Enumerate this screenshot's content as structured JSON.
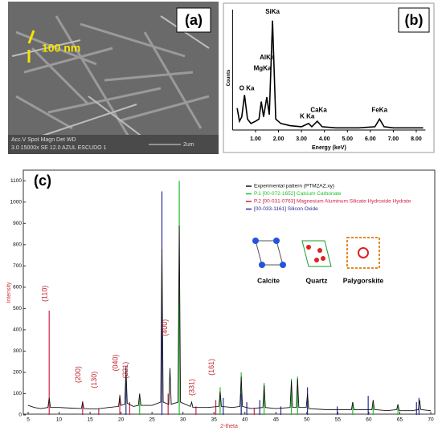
{
  "image_a": {
    "label": "(a)",
    "scale_label": "100 nm",
    "info_top": "Acc.V  Spot Magn    Det  WD",
    "info_bottom": "3.0  15000x  SE  12.0  AZUL ESCUDO 1",
    "scale_bar": "2um"
  },
  "chart_data": [
    {
      "type": "line",
      "panel_label": "(b)",
      "x_label": "Energy (keV)",
      "y_label": "Counts",
      "color": "#000000",
      "x": [
        0.2,
        0.3,
        0.4,
        0.52,
        0.65,
        0.8,
        1.0,
        1.15,
        1.25,
        1.35,
        1.49,
        1.6,
        1.74,
        1.88,
        2.1,
        2.5,
        3.0,
        3.31,
        3.45,
        3.69,
        3.9,
        4.5,
        5.5,
        6.2,
        6.4,
        6.6,
        7.0,
        8.3
      ],
      "values": [
        20,
        8,
        12,
        32,
        10,
        6,
        8,
        10,
        26,
        12,
        30,
        14,
        100,
        10,
        6,
        4,
        3,
        6,
        3,
        8,
        3,
        2,
        2,
        3,
        10,
        3,
        2,
        2
      ],
      "xlim": [
        0,
        8.4
      ],
      "ylim": [
        0,
        110
      ],
      "xticks": [
        {
          "value": 1,
          "label": "1.00"
        },
        {
          "value": 2,
          "label": "2.00"
        },
        {
          "value": 3,
          "label": "3.00"
        },
        {
          "value": 4,
          "label": "4.00"
        },
        {
          "value": 5,
          "label": "5.00"
        },
        {
          "value": 6,
          "label": "6.00"
        },
        {
          "value": 7,
          "label": "7.00"
        },
        {
          "value": 8,
          "label": "8.00"
        }
      ],
      "annotations": [
        {
          "text": "O Ka",
          "x": 0.62,
          "y": 38
        },
        {
          "text": "MgKa",
          "x": 1.3,
          "y": 56
        },
        {
          "text": "AlKa",
          "x": 1.5,
          "y": 66
        },
        {
          "text": "SiKa",
          "x": 1.74,
          "y": 108
        },
        {
          "text": "K Ka",
          "x": 3.25,
          "y": 12
        },
        {
          "text": "CaKa",
          "x": 3.75,
          "y": 18
        },
        {
          "text": "FeKa",
          "x": 6.4,
          "y": 18
        }
      ]
    },
    {
      "type": "line",
      "panel_label": "(c)",
      "x_label": "2-theta",
      "y_label": "Intensity",
      "xlim": [
        5,
        70
      ],
      "ylim": [
        0,
        1150
      ],
      "xticks": [
        5,
        10,
        15,
        20,
        25,
        30,
        35,
        40,
        45,
        50,
        55,
        60,
        65,
        70
      ],
      "yticks": [
        0,
        100,
        200,
        300,
        400,
        500,
        600,
        700,
        800,
        900,
        1000,
        1100
      ],
      "series": [
        {
          "name": "Experimental pattern (PTM2AZ.xy)",
          "color": "#111111",
          "mark": "line",
          "x": [
            5,
            6,
            7,
            8.2,
            8.4,
            8.6,
            10,
            12,
            13.6,
            13.8,
            14,
            16,
            18,
            19.6,
            19.8,
            20,
            20.6,
            20.8,
            21,
            22,
            22.8,
            23,
            23.2,
            25,
            26.4,
            26.6,
            26.8,
            27.7,
            27.9,
            28.1,
            29.2,
            29.4,
            29.6,
            31.2,
            31.4,
            31.6,
            34,
            35.8,
            36,
            36.2,
            38,
            39.2,
            39.4,
            39.6,
            41,
            42.9,
            43.1,
            43.3,
            45,
            47.3,
            47.5,
            47.7,
            48.3,
            48.5,
            48.7,
            49.9,
            50.1,
            50.3,
            53,
            55,
            57.2,
            57.4,
            57.6,
            60.5,
            60.7,
            60.9,
            63,
            64.5,
            64.7,
            64.9,
            67,
            68,
            68.2,
            68.4,
            70
          ],
          "values": [
            45,
            35,
            30,
            35,
            80,
            35,
            35,
            32,
            30,
            60,
            30,
            28,
            35,
            40,
            90,
            45,
            50,
            220,
            55,
            40,
            45,
            100,
            45,
            45,
            60,
            780,
            60,
            50,
            220,
            50,
            60,
            890,
            60,
            40,
            60,
            35,
            35,
            40,
            110,
            40,
            35,
            40,
            180,
            40,
            30,
            35,
            140,
            35,
            30,
            35,
            160,
            35,
            35,
            170,
            35,
            35,
            100,
            30,
            25,
            25,
            25,
            60,
            25,
            25,
            70,
            25,
            20,
            25,
            50,
            20,
            20,
            25,
            70,
            25,
            20
          ]
        },
        {
          "name": "P.1 [00-072-1652]  Calcium Carbonate",
          "color": "#1fbf2a",
          "mark": "stick",
          "x": [
            23.0,
            29.4,
            36.0,
            39.4,
            43.1,
            47.5,
            48.5,
            57.4,
            60.7,
            64.7
          ],
          "values": [
            80,
            1100,
            130,
            200,
            150,
            170,
            180,
            60,
            50,
            40
          ]
        },
        {
          "name": "P.2 [00-031-0763]  Magnesium Aluminum Silicate Hydroxide Hydrate",
          "color": "#d0204a",
          "mark": "stick",
          "x": [
            8.4,
            13.8,
            16.4,
            19.8,
            21.4,
            27.6,
            32.1,
            35.3,
            41.5
          ],
          "values": [
            490,
            65,
            30,
            95,
            60,
            100,
            40,
            70,
            30
          ]
        },
        {
          "name": "[00-033-1161]  Silicon Oxide",
          "color": "#2a2a9a",
          "mark": "stick",
          "x": [
            20.8,
            26.6,
            36.5,
            39.4,
            40.3,
            42.4,
            45.8,
            50.1,
            54.9,
            59.9,
            67.7,
            68.1
          ],
          "values": [
            230,
            1050,
            80,
            100,
            60,
            70,
            40,
            130,
            40,
            90,
            60,
            80
          ]
        }
      ],
      "annotations": [
        {
          "text": "(110)",
          "x": 8.4,
          "y": 570
        },
        {
          "text": "(200)",
          "x": 13.8,
          "y": 190
        },
        {
          "text": "(130)",
          "x": 16.4,
          "y": 165
        },
        {
          "text": "(040)",
          "x": 19.8,
          "y": 245
        },
        {
          "text": "(221)",
          "x": 21.4,
          "y": 210
        },
        {
          "text": "(400)",
          "x": 27.8,
          "y": 410
        },
        {
          "text": "(331)",
          "x": 32.1,
          "y": 130
        },
        {
          "text": "(161)",
          "x": 35.3,
          "y": 225
        }
      ],
      "insets": [
        "Calcite",
        "Quartz",
        "Palygorskite"
      ]
    }
  ]
}
